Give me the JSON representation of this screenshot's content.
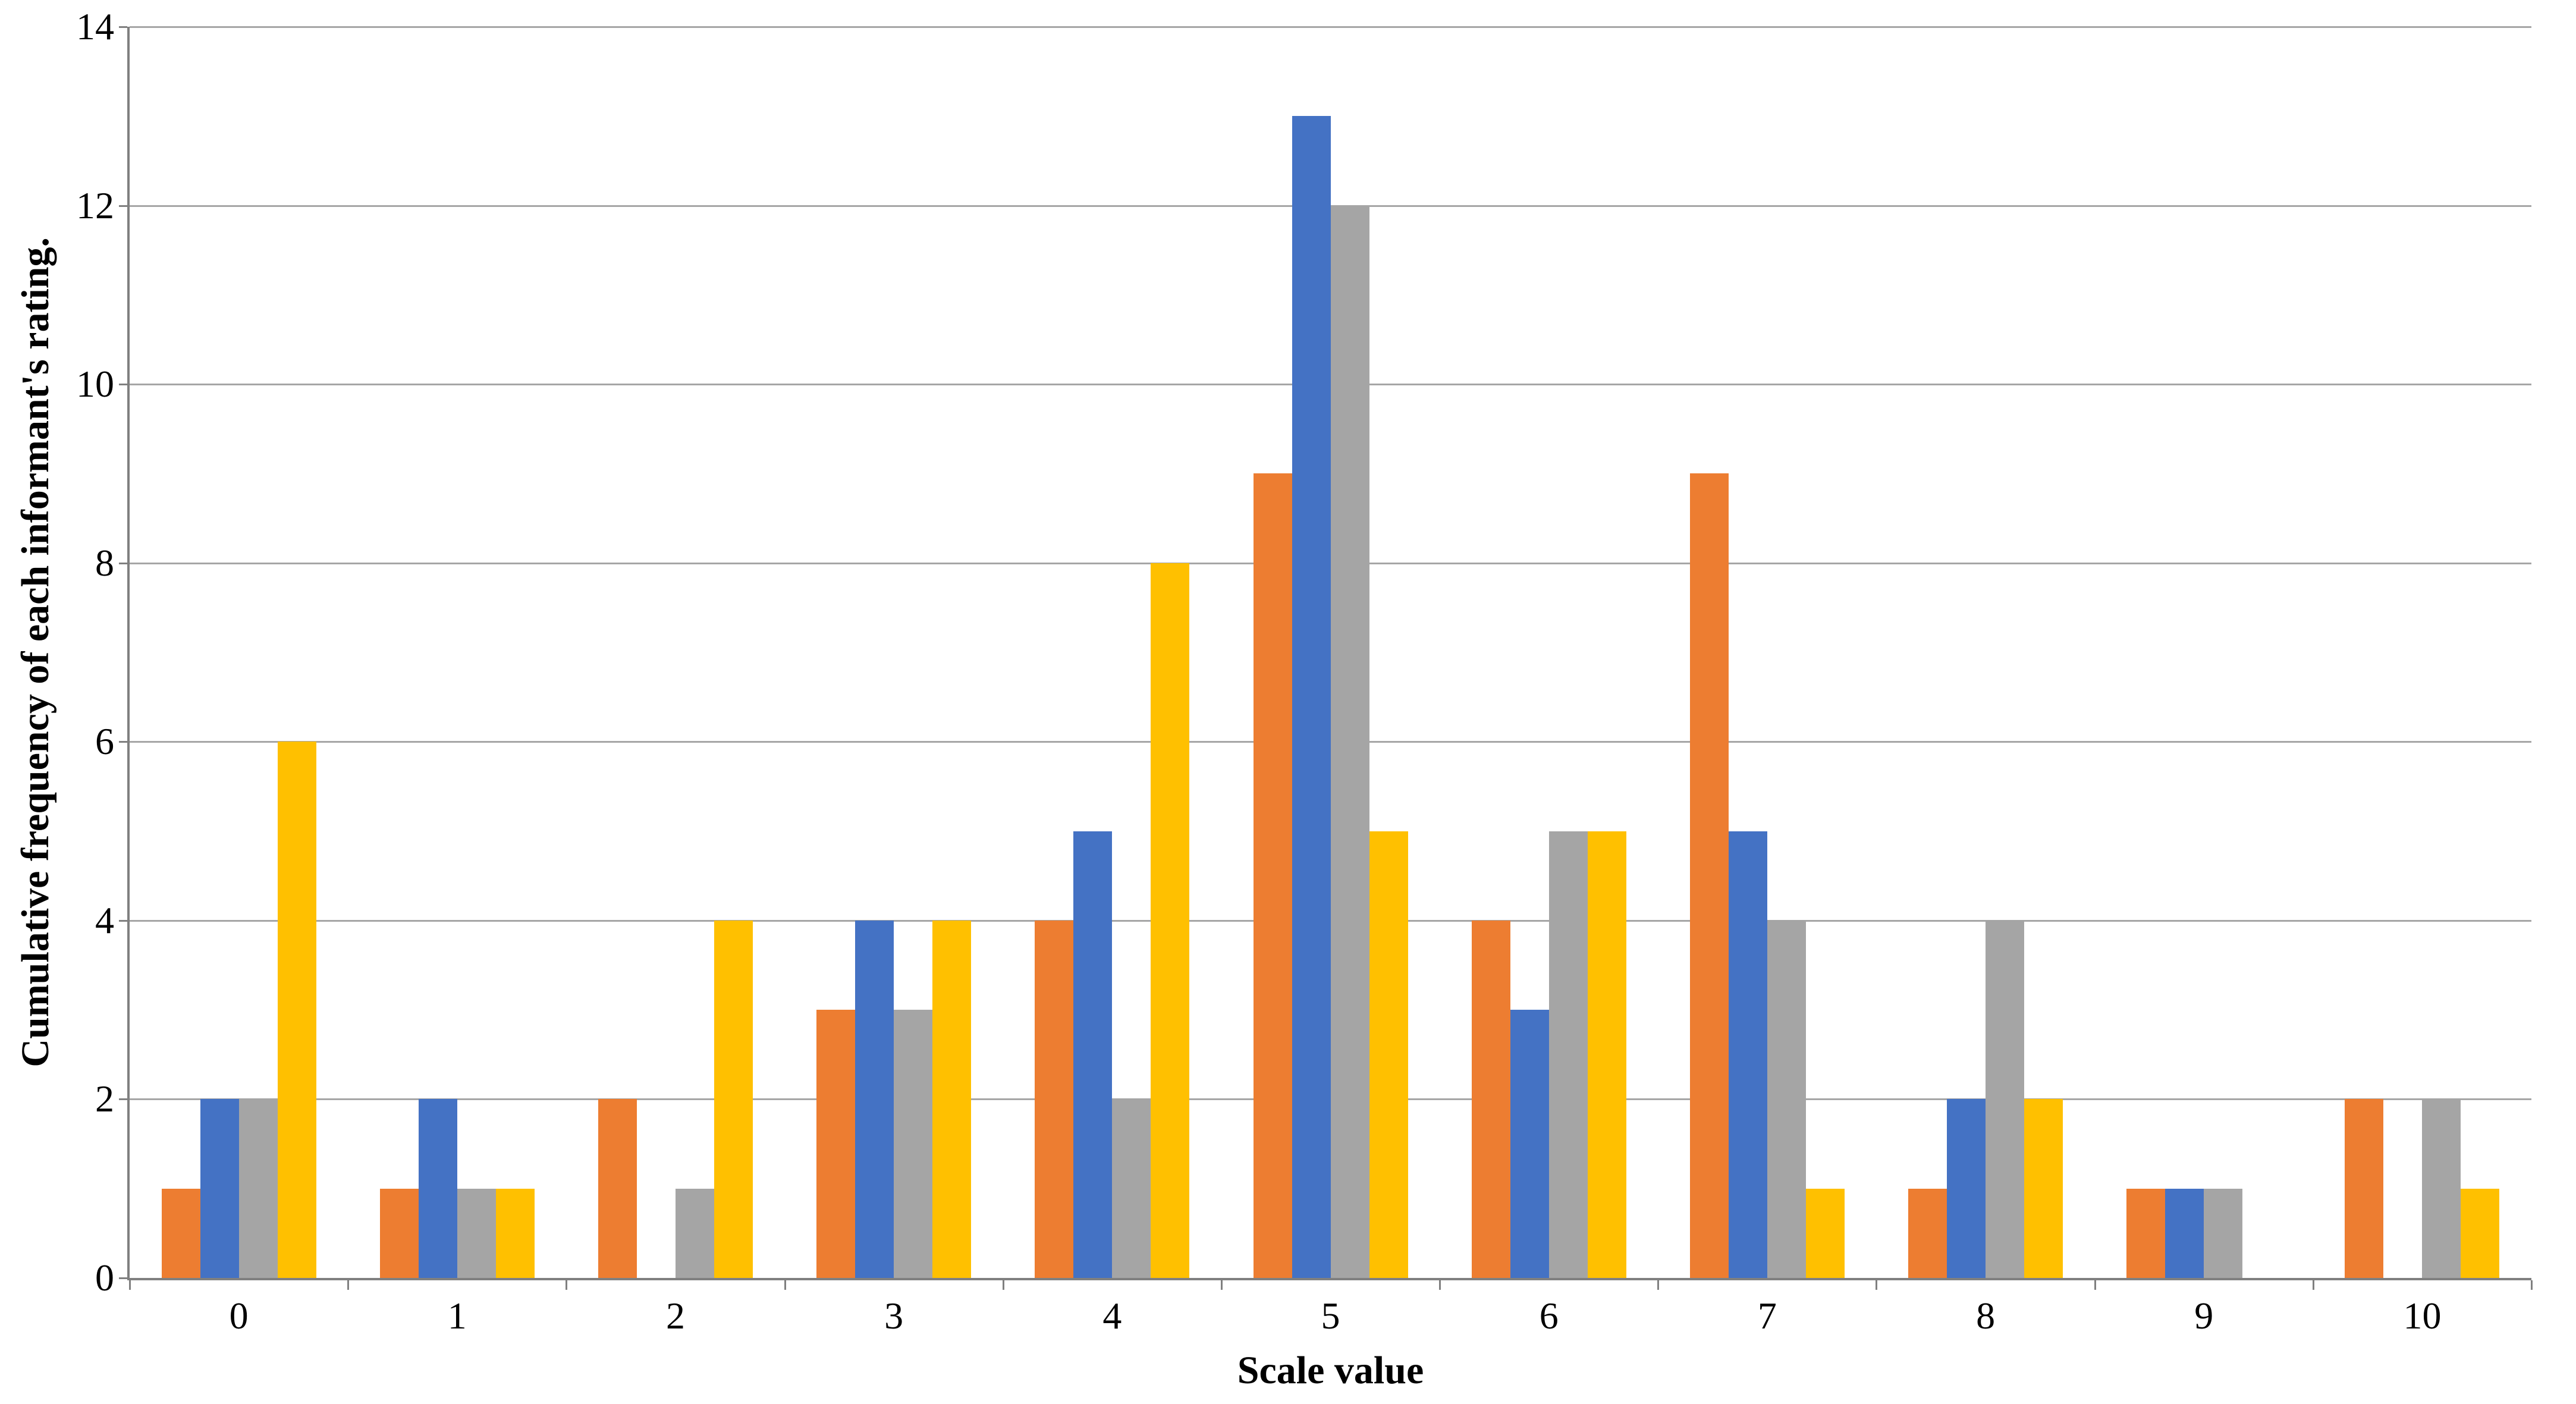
{
  "chart_data": {
    "type": "bar",
    "title": "",
    "xlabel": "Scale value",
    "ylabel": "Cumulative frequency of each informant's rating.",
    "categories": [
      "0",
      "1",
      "2",
      "3",
      "4",
      "5",
      "6",
      "7",
      "8",
      "9",
      "10"
    ],
    "series": [
      {
        "name": "orange",
        "color": "#ED7D31",
        "values": [
          1,
          1,
          2,
          3,
          4,
          9,
          4,
          9,
          1,
          1,
          2
        ]
      },
      {
        "name": "blue",
        "color": "#4472C4",
        "values": [
          2,
          2,
          0,
          4,
          5,
          13,
          3,
          5,
          2,
          1,
          0
        ]
      },
      {
        "name": "gray",
        "color": "#A5A5A5",
        "values": [
          2,
          1,
          1,
          3,
          2,
          12,
          5,
          4,
          4,
          1,
          2
        ]
      },
      {
        "name": "yellow",
        "color": "#FFC000",
        "values": [
          6,
          1,
          4,
          4,
          8,
          5,
          5,
          1,
          2,
          0,
          1
        ]
      }
    ],
    "ylim": [
      0,
      14
    ],
    "yticks": [
      0,
      2,
      4,
      6,
      8,
      10,
      12,
      14
    ],
    "grid": true,
    "legend": "none",
    "grid_color": "#A6A6A6",
    "axis_color": "#808080",
    "text_color": "#000000"
  }
}
